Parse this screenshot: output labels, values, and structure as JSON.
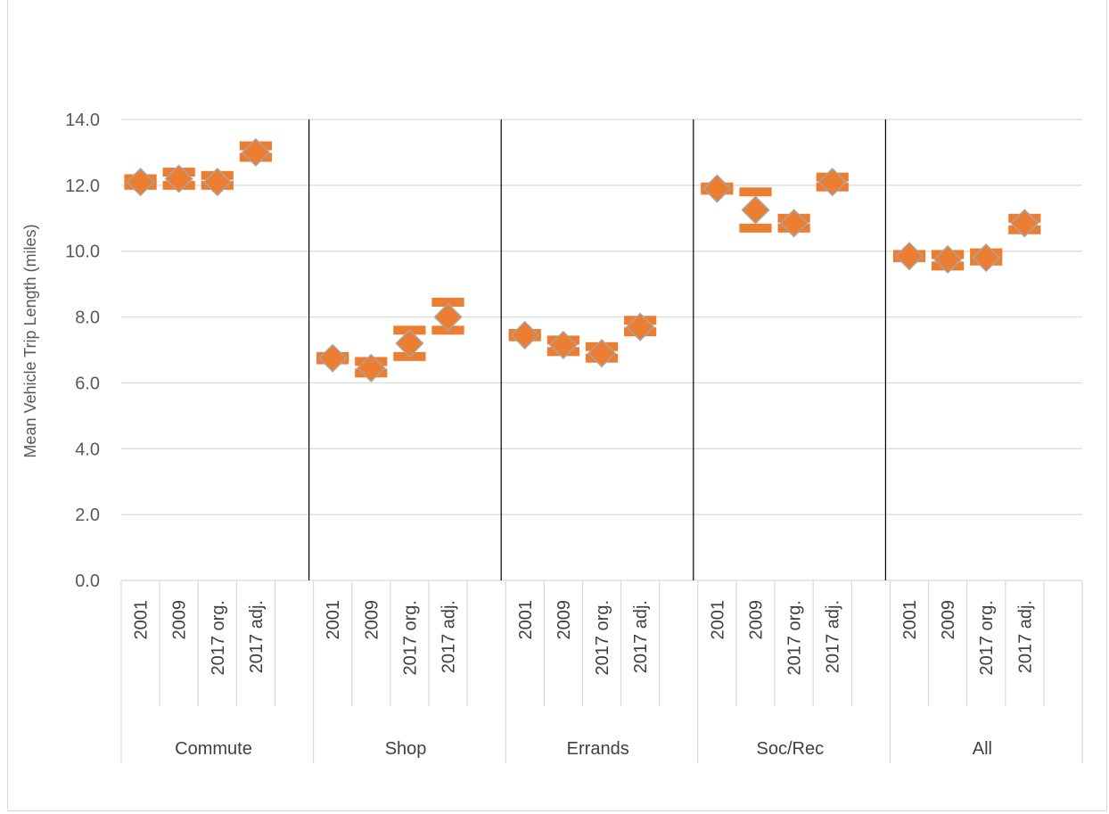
{
  "chart_data": {
    "type": "scatter",
    "title": "",
    "ylabel": "Mean Vehicle Trip Length (miles)",
    "xlabel": "",
    "ylim": [
      0,
      14
    ],
    "yticks": [
      "0.0",
      "2.0",
      "4.0",
      "6.0",
      "8.0",
      "10.0",
      "12.0",
      "14.0"
    ],
    "grid": "horizontal",
    "legend": "none",
    "colors": {
      "marker": "#ED7D31",
      "marker_outline": "#A5A5A5",
      "error_bar": "#ED7D31",
      "gridline": "#d9d9d9",
      "separator": "#000000"
    },
    "groups": [
      {
        "label": "Commute",
        "subcategories": [
          "2001",
          "2009",
          "2017 org.",
          "2017 adj."
        ],
        "values": [
          12.1,
          12.2,
          12.1,
          13.0
        ],
        "lower": [
          12.0,
          12.0,
          12.0,
          12.85
        ],
        "upper": [
          12.2,
          12.4,
          12.3,
          13.2
        ]
      },
      {
        "label": "Shop",
        "subcategories": [
          "2001",
          "2009",
          "2017 org.",
          "2017 adj."
        ],
        "values": [
          6.75,
          6.45,
          7.2,
          8.0
        ],
        "lower": [
          6.7,
          6.3,
          6.8,
          7.6
        ],
        "upper": [
          6.8,
          6.65,
          7.6,
          8.45
        ]
      },
      {
        "label": "Errands",
        "subcategories": [
          "2001",
          "2009",
          "2017 org.",
          "2017 adj."
        ],
        "values": [
          7.45,
          7.15,
          6.9,
          7.7
        ],
        "lower": [
          7.4,
          6.95,
          6.75,
          7.55
        ],
        "upper": [
          7.5,
          7.3,
          7.1,
          7.9
        ]
      },
      {
        "label": "Soc/Rec",
        "subcategories": [
          "2001",
          "2009",
          "2017 org.",
          "2017 adj."
        ],
        "values": [
          11.9,
          11.25,
          10.85,
          12.1
        ],
        "lower": [
          11.85,
          10.7,
          10.7,
          11.95
        ],
        "upper": [
          11.95,
          11.8,
          11.0,
          12.25
        ]
      },
      {
        "label": "All",
        "subcategories": [
          "2001",
          "2009",
          "2017 org.",
          "2017 adj."
        ],
        "values": [
          9.85,
          9.75,
          9.8,
          10.85
        ],
        "lower": [
          9.8,
          9.55,
          9.7,
          10.65
        ],
        "upper": [
          9.9,
          9.9,
          9.95,
          11.0
        ]
      }
    ]
  }
}
